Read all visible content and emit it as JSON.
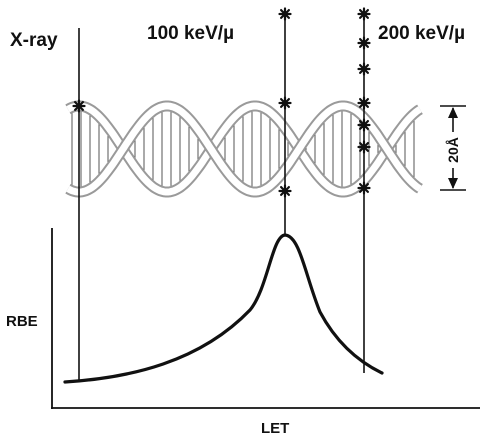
{
  "labels": {
    "xray": "X-ray",
    "kev100": "100 keV/µ",
    "kev200": "200 keV/µ",
    "scale": "20Å",
    "y_axis": "RBE",
    "x_axis": "LET"
  },
  "colors": {
    "ink": "#111111",
    "helix_strand": "#9a9a9a",
    "helix_fill": "#ffffff",
    "background": "#ffffff"
  },
  "tracks": [
    {
      "name": "xray-track",
      "ionizations_on_helix": 1
    },
    {
      "name": "kev100-track",
      "ionizations_on_helix": 3
    },
    {
      "name": "kev200-track",
      "ionizations_on_helix": 7
    }
  ],
  "curve_shape": "peaked (RBE rises with LET, maximum near 100 keV/µ, falls at higher LET)"
}
